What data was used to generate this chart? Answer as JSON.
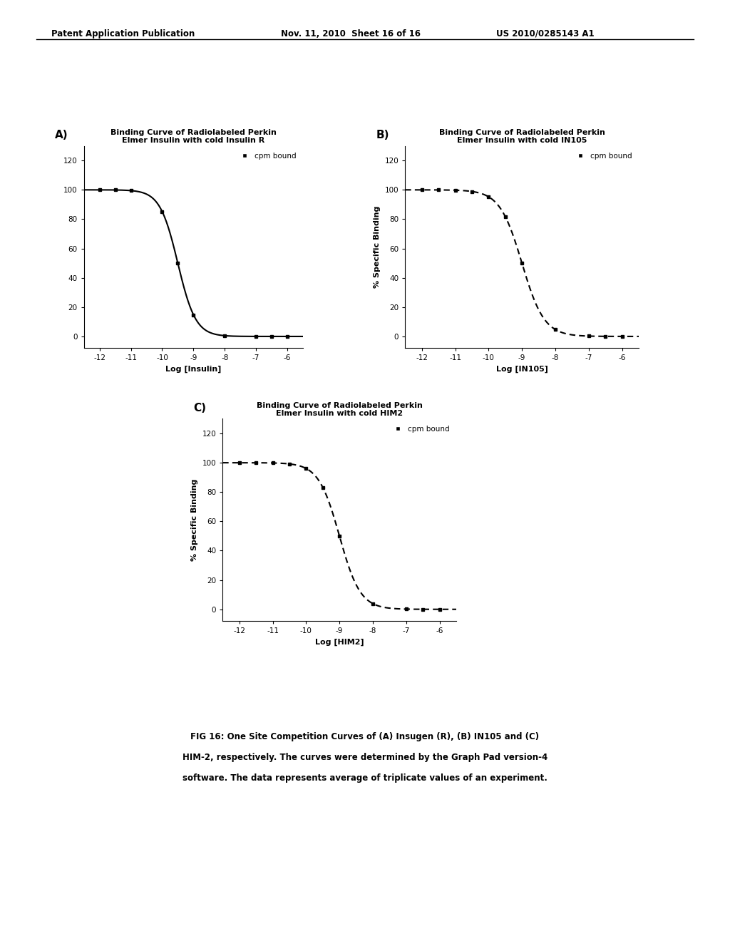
{
  "header_left": "Patent Application Publication",
  "header_mid": "Nov. 11, 2010  Sheet 16 of 16",
  "header_right": "US 2010/0285143 A1",
  "panel_A_label": "A)",
  "panel_B_label": "B)",
  "panel_C_label": "C)",
  "title_A": "Binding Curve of Radiolabeled Perkin\nElmer Insulin with cold Insulin R",
  "title_B": "Binding Curve of Radiolabeled Perkin\nElmer Insulin with cold IN105",
  "title_C": "Binding Curve of Radiolabeled Perkin\nElmer Insulin with cold HIM2",
  "xlabel_A": "Log [Insulin]",
  "xlabel_B": "Log [IN105]",
  "xlabel_C": "Log [HIM2]",
  "ylabel_ABC": "% Specific Binding",
  "legend_label": "cpm bound",
  "xlim": [
    -12.5,
    -5.5
  ],
  "xticks": [
    -12,
    -11,
    -10,
    -9,
    -8,
    -7,
    -6
  ],
  "xticklabels": [
    "-12",
    "-11",
    "-10",
    "-9",
    "-8",
    "-7",
    "-6"
  ],
  "ylim": [
    -8,
    130
  ],
  "yticks": [
    0,
    20,
    40,
    60,
    80,
    100,
    120
  ],
  "curve_color": "#000000",
  "marker_color": "#000000",
  "background_color": "#ffffff",
  "sigmoid_A_x0": -9.5,
  "sigmoid_A_k": 3.5,
  "sigmoid_B_x0": -9.0,
  "sigmoid_B_k": 3.0,
  "sigmoid_C_x0": -9.0,
  "sigmoid_C_k": 3.2,
  "caption_line1": "FIG 16: One Site Competition Curves of (A) Insugen (R), (B) IN105 and (C)",
  "caption_line2": "HIM-2, respectively. The curves were determined by the Graph Pad version-4",
  "caption_line3": "software. The data represents average of triplicate values of an experiment."
}
